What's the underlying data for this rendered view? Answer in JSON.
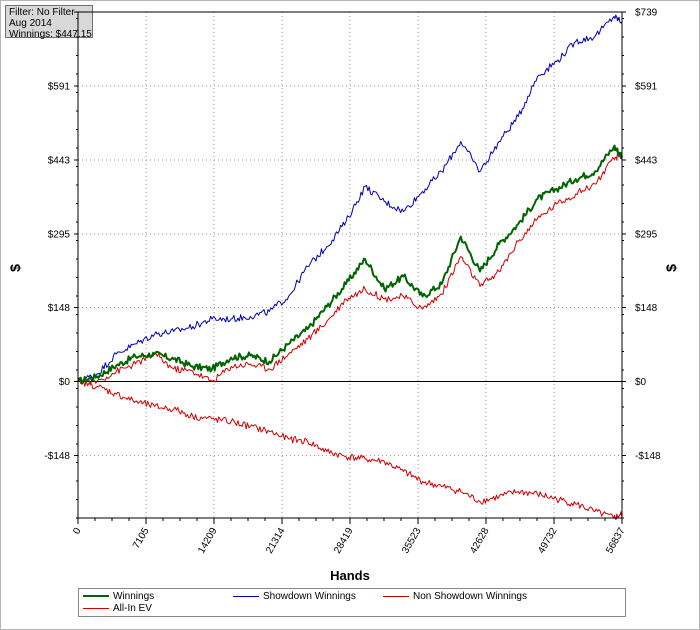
{
  "info": {
    "filter": "Filter: No Filter",
    "period": "Aug 2014",
    "winnings": "Winnings: $447.15"
  },
  "colors": {
    "winnings": "#006400",
    "showdown": "#0000b4",
    "non_showdown": "#d40000",
    "all_in_ev": "#d40000"
  },
  "chart_data": {
    "type": "line",
    "xlabel": "Hands",
    "ylabel": "$",
    "ylabel_right": "$",
    "xlim": [
      0,
      56837
    ],
    "ylim": [
      -273,
      739
    ],
    "x_ticks": [
      0,
      7105,
      14209,
      21314,
      28419,
      35523,
      42628,
      49732,
      56837
    ],
    "x_tick_labels": [
      "0",
      "7105",
      "14209",
      "21314",
      "28419",
      "35523",
      "42628",
      "49732",
      "56837"
    ],
    "y_ticks": [
      -148,
      0,
      148,
      295,
      443,
      591,
      739
    ],
    "y_tick_labels": [
      "-$148",
      "$0",
      "$148",
      "$295",
      "$443",
      "$591",
      "$739"
    ],
    "grid": true,
    "legend_position": "bottom",
    "x": [
      0,
      2000,
      4000,
      6000,
      8000,
      10000,
      12000,
      14000,
      16000,
      18000,
      20000,
      22000,
      24000,
      26000,
      28000,
      30000,
      32000,
      34000,
      36000,
      38000,
      40000,
      42000,
      44000,
      46000,
      48000,
      50000,
      52000,
      54000,
      56000,
      56837
    ],
    "series": [
      {
        "name": "Winnings",
        "key": "winnings",
        "values": [
          0,
          10,
          32,
          50,
          55,
          45,
          30,
          25,
          48,
          52,
          40,
          75,
          105,
          150,
          195,
          245,
          185,
          210,
          170,
          195,
          290,
          220,
          275,
          315,
          365,
          385,
          405,
          420,
          470,
          450
        ]
      },
      {
        "name": "Showdown Winnings",
        "key": "showdown",
        "values": [
          0,
          15,
          55,
          75,
          95,
          100,
          110,
          125,
          125,
          130,
          140,
          170,
          230,
          270,
          320,
          390,
          360,
          340,
          380,
          420,
          480,
          420,
          480,
          530,
          610,
          640,
          680,
          690,
          730,
          720
        ]
      },
      {
        "name": "Non Showdown Winnings",
        "key": "non_showdown",
        "values": [
          0,
          -10,
          -25,
          -40,
          -50,
          -55,
          -70,
          -75,
          -80,
          -90,
          -100,
          -115,
          -120,
          -140,
          -150,
          -155,
          -160,
          -180,
          -200,
          -210,
          -220,
          -240,
          -230,
          -220,
          -225,
          -235,
          -245,
          -260,
          -273,
          -265
        ]
      },
      {
        "name": "All-In EV",
        "key": "all_in_ev",
        "values": [
          0,
          0,
          20,
          35,
          55,
          25,
          20,
          0,
          30,
          35,
          25,
          55,
          85,
          120,
          165,
          185,
          165,
          170,
          145,
          175,
          250,
          190,
          220,
          280,
          325,
          355,
          375,
          395,
          445,
          455
        ]
      }
    ]
  }
}
